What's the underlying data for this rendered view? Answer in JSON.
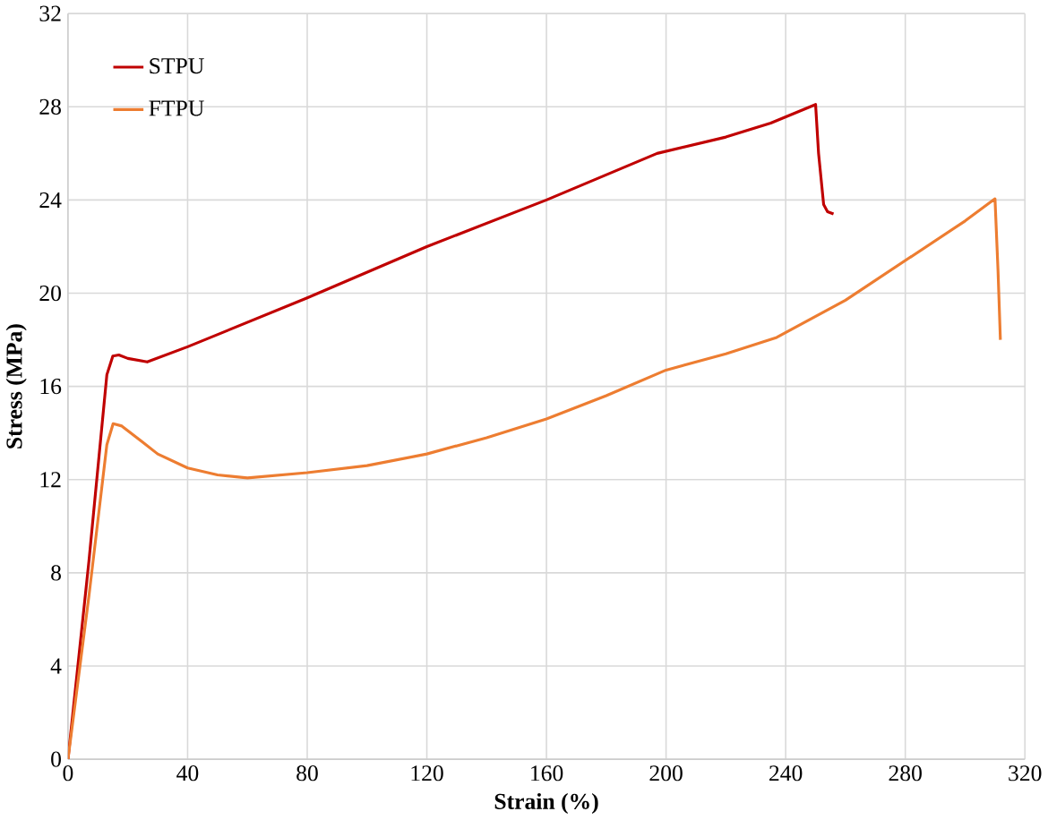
{
  "chart_data": {
    "type": "line",
    "xlabel": "Strain (%)",
    "ylabel": "Stress (MPa)",
    "xlim": [
      0,
      320
    ],
    "xticks": [
      0,
      40,
      80,
      120,
      160,
      200,
      240,
      280,
      320
    ],
    "ylim": [
      0,
      32
    ],
    "yticks": [
      0,
      4,
      8,
      12,
      16,
      20,
      24,
      28,
      32
    ],
    "grid": true,
    "legend": "top left",
    "marker": "none",
    "line_style": "solid",
    "series": [
      {
        "name": "STPU",
        "color": "#c00000",
        "x": [
          0,
          7,
          13,
          15,
          17,
          20,
          26.5,
          40,
          80,
          120,
          160,
          197,
          220,
          235,
          250,
          251,
          252.7,
          254,
          256
        ],
        "values": [
          0,
          8.5,
          16.5,
          17.3,
          17.35,
          17.2,
          17.05,
          17.7,
          19.8,
          22.0,
          24.0,
          26.0,
          26.7,
          27.3,
          28.1,
          26,
          23.8,
          23.5,
          23.4
        ]
      },
      {
        "name": "FTPU",
        "color": "#ed7d31",
        "x": [
          0,
          7,
          13,
          15.1,
          18,
          25,
          30,
          40,
          50,
          60,
          80,
          100,
          120,
          140,
          160,
          180,
          200,
          220,
          237,
          260,
          280,
          300,
          310,
          311,
          311.8
        ],
        "values": [
          0,
          7,
          13.5,
          14.4,
          14.3,
          13.6,
          13.1,
          12.5,
          12.2,
          12.07,
          12.3,
          12.6,
          13.1,
          13.8,
          14.6,
          15.6,
          16.7,
          17.4,
          18.1,
          19.7,
          21.4,
          23.1,
          24.05,
          21,
          18.0
        ]
      }
    ]
  }
}
